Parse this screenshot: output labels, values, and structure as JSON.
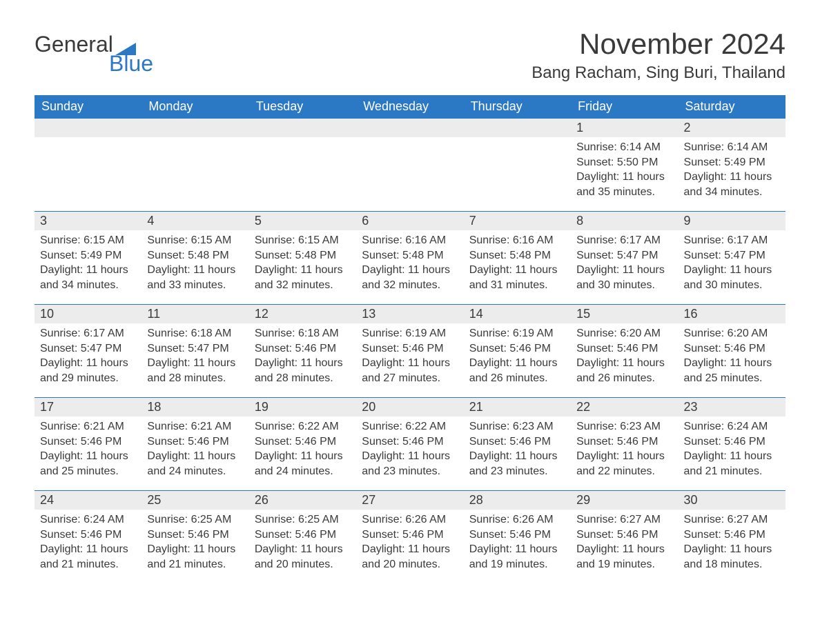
{
  "brand": {
    "word1": "General",
    "word2": "Blue",
    "accent": "#2b78c4"
  },
  "title": "November 2024",
  "location": "Bang Racham, Sing Buri, Thailand",
  "colors": {
    "header_bg": "#2b78c4",
    "header_text": "#ffffff",
    "daynum_bg": "#ececec",
    "daynum_border": "#2b78c4",
    "text": "#3a3a3a",
    "page_bg": "#ffffff"
  },
  "weekdays": [
    "Sunday",
    "Monday",
    "Tuesday",
    "Wednesday",
    "Thursday",
    "Friday",
    "Saturday"
  ],
  "labels": {
    "sunrise": "Sunrise:",
    "sunset": "Sunset:",
    "daylight": "Daylight:"
  },
  "grid": [
    [
      null,
      null,
      null,
      null,
      null,
      {
        "n": "1",
        "sunrise": "6:14 AM",
        "sunset": "5:50 PM",
        "day_h": "11",
        "day_m": "35"
      },
      {
        "n": "2",
        "sunrise": "6:14 AM",
        "sunset": "5:49 PM",
        "day_h": "11",
        "day_m": "34"
      }
    ],
    [
      {
        "n": "3",
        "sunrise": "6:15 AM",
        "sunset": "5:49 PM",
        "day_h": "11",
        "day_m": "34"
      },
      {
        "n": "4",
        "sunrise": "6:15 AM",
        "sunset": "5:48 PM",
        "day_h": "11",
        "day_m": "33"
      },
      {
        "n": "5",
        "sunrise": "6:15 AM",
        "sunset": "5:48 PM",
        "day_h": "11",
        "day_m": "32"
      },
      {
        "n": "6",
        "sunrise": "6:16 AM",
        "sunset": "5:48 PM",
        "day_h": "11",
        "day_m": "32"
      },
      {
        "n": "7",
        "sunrise": "6:16 AM",
        "sunset": "5:48 PM",
        "day_h": "11",
        "day_m": "31"
      },
      {
        "n": "8",
        "sunrise": "6:17 AM",
        "sunset": "5:47 PM",
        "day_h": "11",
        "day_m": "30"
      },
      {
        "n": "9",
        "sunrise": "6:17 AM",
        "sunset": "5:47 PM",
        "day_h": "11",
        "day_m": "30"
      }
    ],
    [
      {
        "n": "10",
        "sunrise": "6:17 AM",
        "sunset": "5:47 PM",
        "day_h": "11",
        "day_m": "29"
      },
      {
        "n": "11",
        "sunrise": "6:18 AM",
        "sunset": "5:47 PM",
        "day_h": "11",
        "day_m": "28"
      },
      {
        "n": "12",
        "sunrise": "6:18 AM",
        "sunset": "5:46 PM",
        "day_h": "11",
        "day_m": "28"
      },
      {
        "n": "13",
        "sunrise": "6:19 AM",
        "sunset": "5:46 PM",
        "day_h": "11",
        "day_m": "27"
      },
      {
        "n": "14",
        "sunrise": "6:19 AM",
        "sunset": "5:46 PM",
        "day_h": "11",
        "day_m": "26"
      },
      {
        "n": "15",
        "sunrise": "6:20 AM",
        "sunset": "5:46 PM",
        "day_h": "11",
        "day_m": "26"
      },
      {
        "n": "16",
        "sunrise": "6:20 AM",
        "sunset": "5:46 PM",
        "day_h": "11",
        "day_m": "25"
      }
    ],
    [
      {
        "n": "17",
        "sunrise": "6:21 AM",
        "sunset": "5:46 PM",
        "day_h": "11",
        "day_m": "25"
      },
      {
        "n": "18",
        "sunrise": "6:21 AM",
        "sunset": "5:46 PM",
        "day_h": "11",
        "day_m": "24"
      },
      {
        "n": "19",
        "sunrise": "6:22 AM",
        "sunset": "5:46 PM",
        "day_h": "11",
        "day_m": "24"
      },
      {
        "n": "20",
        "sunrise": "6:22 AM",
        "sunset": "5:46 PM",
        "day_h": "11",
        "day_m": "23"
      },
      {
        "n": "21",
        "sunrise": "6:23 AM",
        "sunset": "5:46 PM",
        "day_h": "11",
        "day_m": "23"
      },
      {
        "n": "22",
        "sunrise": "6:23 AM",
        "sunset": "5:46 PM",
        "day_h": "11",
        "day_m": "22"
      },
      {
        "n": "23",
        "sunrise": "6:24 AM",
        "sunset": "5:46 PM",
        "day_h": "11",
        "day_m": "21"
      }
    ],
    [
      {
        "n": "24",
        "sunrise": "6:24 AM",
        "sunset": "5:46 PM",
        "day_h": "11",
        "day_m": "21"
      },
      {
        "n": "25",
        "sunrise": "6:25 AM",
        "sunset": "5:46 PM",
        "day_h": "11",
        "day_m": "21"
      },
      {
        "n": "26",
        "sunrise": "6:25 AM",
        "sunset": "5:46 PM",
        "day_h": "11",
        "day_m": "20"
      },
      {
        "n": "27",
        "sunrise": "6:26 AM",
        "sunset": "5:46 PM",
        "day_h": "11",
        "day_m": "20"
      },
      {
        "n": "28",
        "sunrise": "6:26 AM",
        "sunset": "5:46 PM",
        "day_h": "11",
        "day_m": "19"
      },
      {
        "n": "29",
        "sunrise": "6:27 AM",
        "sunset": "5:46 PM",
        "day_h": "11",
        "day_m": "19"
      },
      {
        "n": "30",
        "sunrise": "6:27 AM",
        "sunset": "5:46 PM",
        "day_h": "11",
        "day_m": "18"
      }
    ]
  ]
}
